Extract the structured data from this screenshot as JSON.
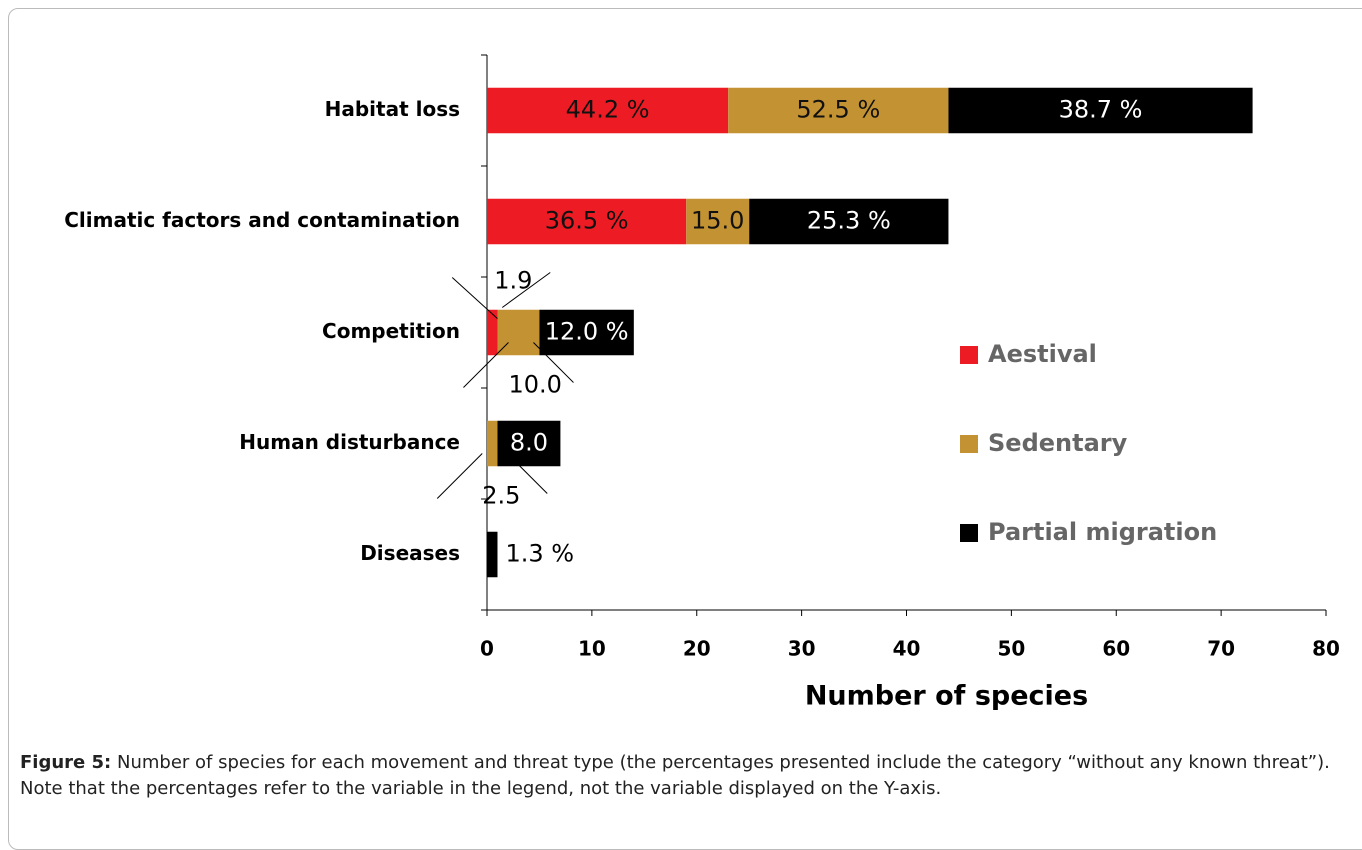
{
  "chart_data": {
    "type": "stacked-bar-horizontal",
    "categories": [
      "Habitat loss",
      "Climatic factors and contamination",
      "Competition",
      "Human disturbance",
      "Diseases"
    ],
    "series": [
      {
        "name": "Aestival",
        "color": "#ed1c24",
        "values": [
          23,
          19,
          1,
          0,
          0
        ],
        "percent_labels": [
          "44.2 %",
          "36.5 %",
          "1.9",
          null,
          null
        ]
      },
      {
        "name": "Sedentary",
        "color": "#c39233",
        "values": [
          21,
          6,
          4,
          1,
          0
        ],
        "percent_labels": [
          "52.5 %",
          "15.0",
          "10.0",
          "2.5",
          null
        ]
      },
      {
        "name": "Partial migration",
        "color": "#000000",
        "values": [
          29,
          19,
          9,
          6,
          1
        ],
        "percent_labels": [
          "38.7 %",
          "25.3 %",
          "12.0 %",
          "8.0",
          "1.3 %"
        ]
      }
    ],
    "xlabel": "Number of species",
    "xlim": [
      0,
      80
    ],
    "xticks": [
      0,
      10,
      20,
      30,
      40,
      50,
      60,
      70,
      80
    ],
    "legend": "right",
    "caption_label": "Figure 5:",
    "caption_text": "Number of species for each movement and threat type (the percentages presented include the category “without any known threat”). Note that the percentages refer to the variable in the legend, not the variable displayed on the Y-axis."
  }
}
